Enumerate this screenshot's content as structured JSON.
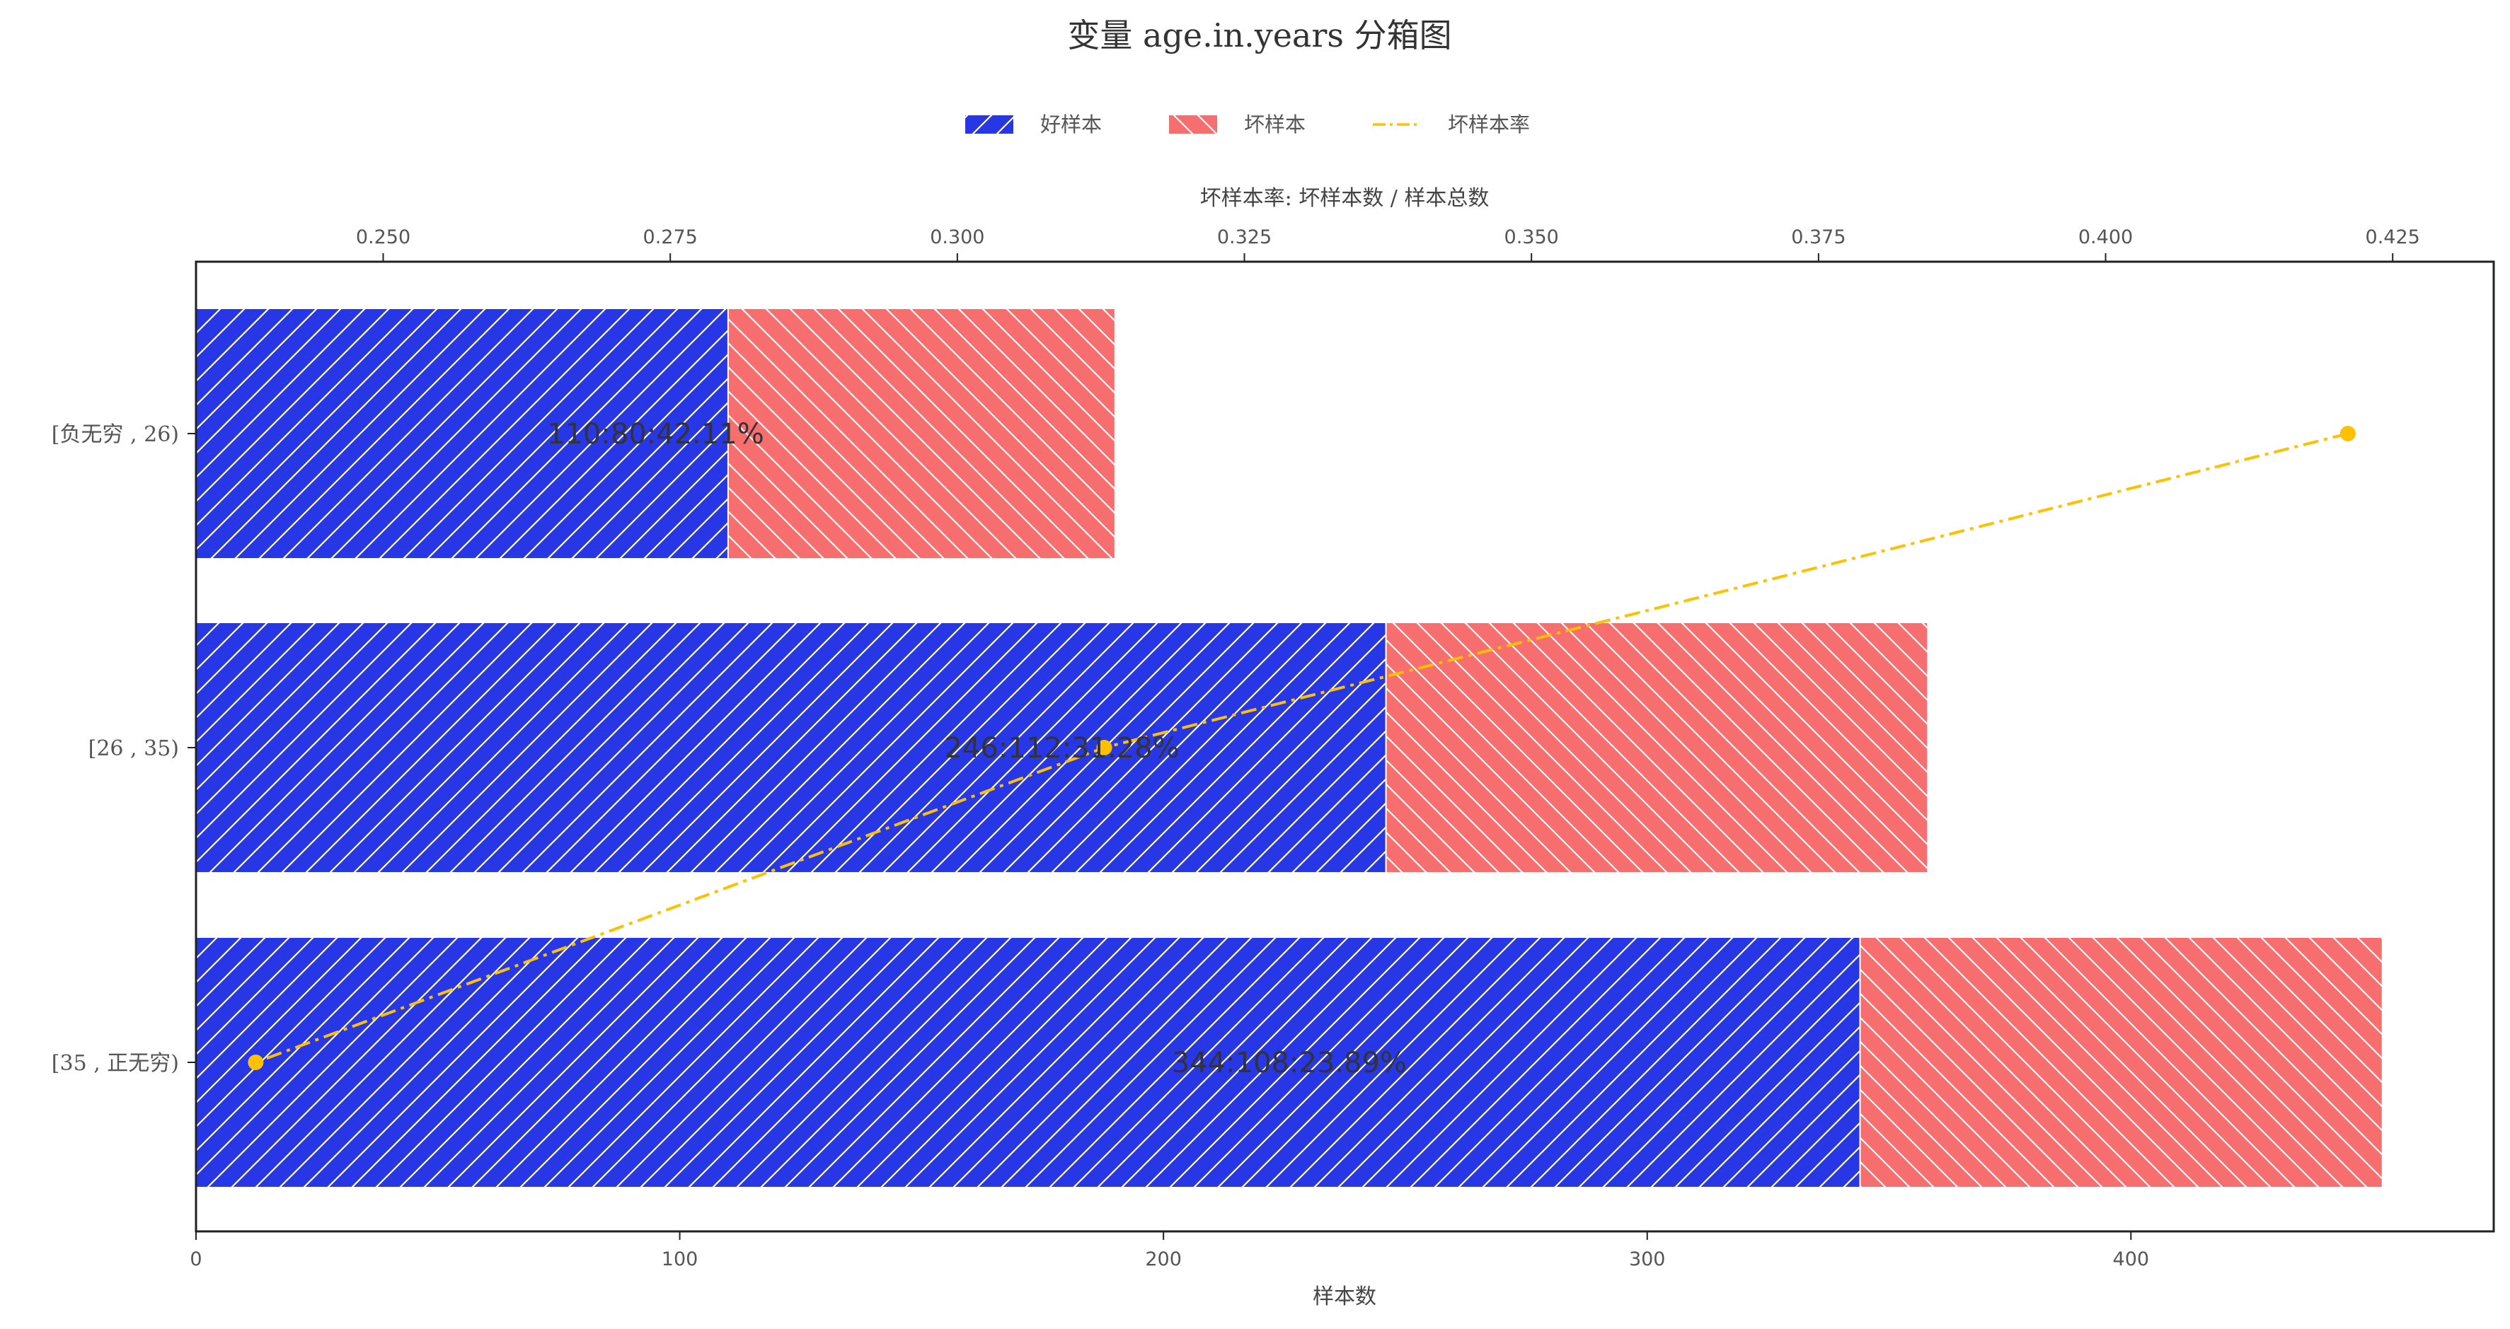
{
  "chart_data": {
    "type": "bar",
    "orientation": "horizontal",
    "stacked": true,
    "title": "变量 age.in.years 分箱图",
    "xlabel": "样本数",
    "x2label": "坏样本率: 坏样本数 / 样本总数",
    "categories": [
      "[负无穷 , 26)",
      "[26 , 35)",
      "[35 , 正无穷)"
    ],
    "series": [
      {
        "name": "好样本",
        "values": [
          110,
          246,
          344
        ],
        "color": "#2837e6",
        "hatch": "/"
      },
      {
        "name": "坏样本",
        "values": [
          80,
          112,
          108
        ],
        "color": "#f76e6e",
        "hatch": "\\"
      }
    ],
    "line_series": {
      "name": "坏样本率",
      "values": [
        0.4211,
        0.3128,
        0.2389
      ],
      "color": "#ffc000",
      "style": "dash-dot"
    },
    "data_labels": [
      "110:80:42.11%",
      "246:112:31.28%",
      "344:108:23.89%"
    ],
    "xlim": [
      0,
      475
    ],
    "x_ticks": [
      0,
      100,
      200,
      300,
      400
    ],
    "x2lim": [
      0.2337,
      0.4338
    ],
    "x2_ticks": [
      "0.250",
      "0.275",
      "0.300",
      "0.325",
      "0.350",
      "0.375",
      "0.400",
      "0.425"
    ],
    "legend_position": "top-center",
    "grid": false
  }
}
